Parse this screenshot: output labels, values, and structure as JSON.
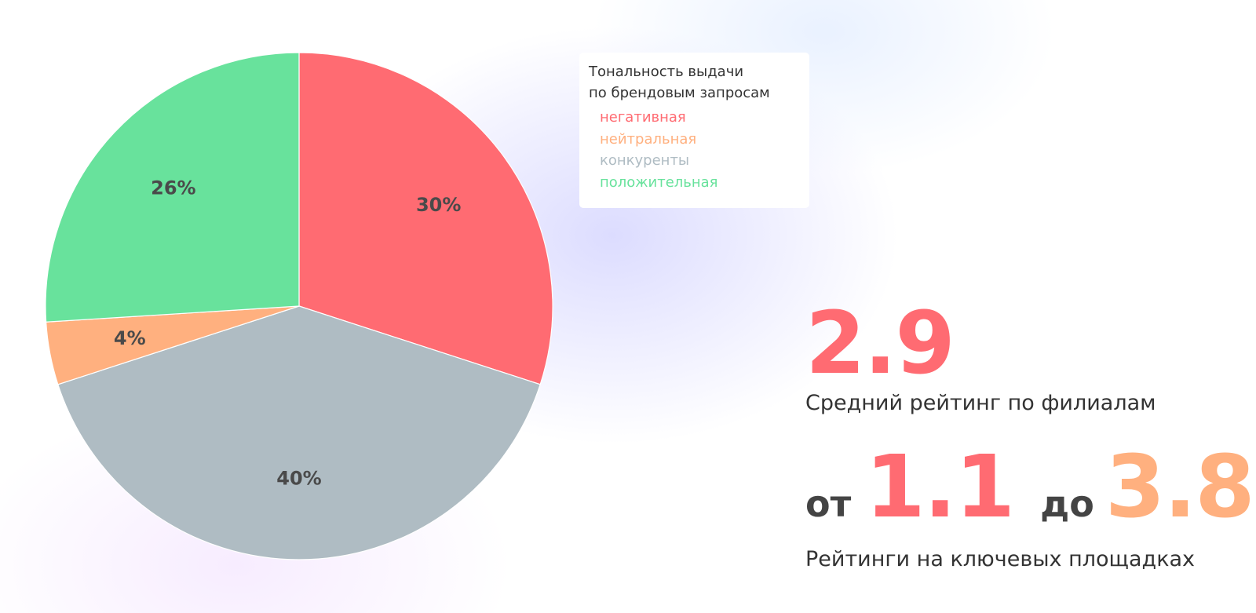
{
  "chart_data": {
    "type": "pie",
    "title": "Тональность выдачи по брендовым запросам",
    "title_lines": [
      "Тональность выдачи",
      "по брендовым запросам"
    ],
    "legend_position": "top-right",
    "slices": [
      {
        "name": "негативная",
        "value": 30,
        "label": "30%",
        "color": "#ff6b72"
      },
      {
        "name": "конкуренты",
        "value": 40,
        "label": "40%",
        "color": "#afbcc3"
      },
      {
        "name": "нейтральная",
        "value": 4,
        "label": "4%",
        "color": "#ffb07f"
      },
      {
        "name": "положительная",
        "value": 26,
        "label": "26%",
        "color": "#68e29c"
      }
    ],
    "legend_order": [
      0,
      2,
      1,
      3
    ]
  },
  "stats": {
    "average_rating": "2.9",
    "average_caption": "Средний рейтинг по филиалам",
    "range_from_word": "от",
    "range_min": "1.1",
    "range_to_word": "до",
    "range_max": "3.8",
    "range_caption": "Рейтинги на ключевых площадках"
  },
  "colors": {
    "accent_red": "#ff6b72",
    "accent_orange": "#ffb07f",
    "text_dark": "#444444"
  }
}
